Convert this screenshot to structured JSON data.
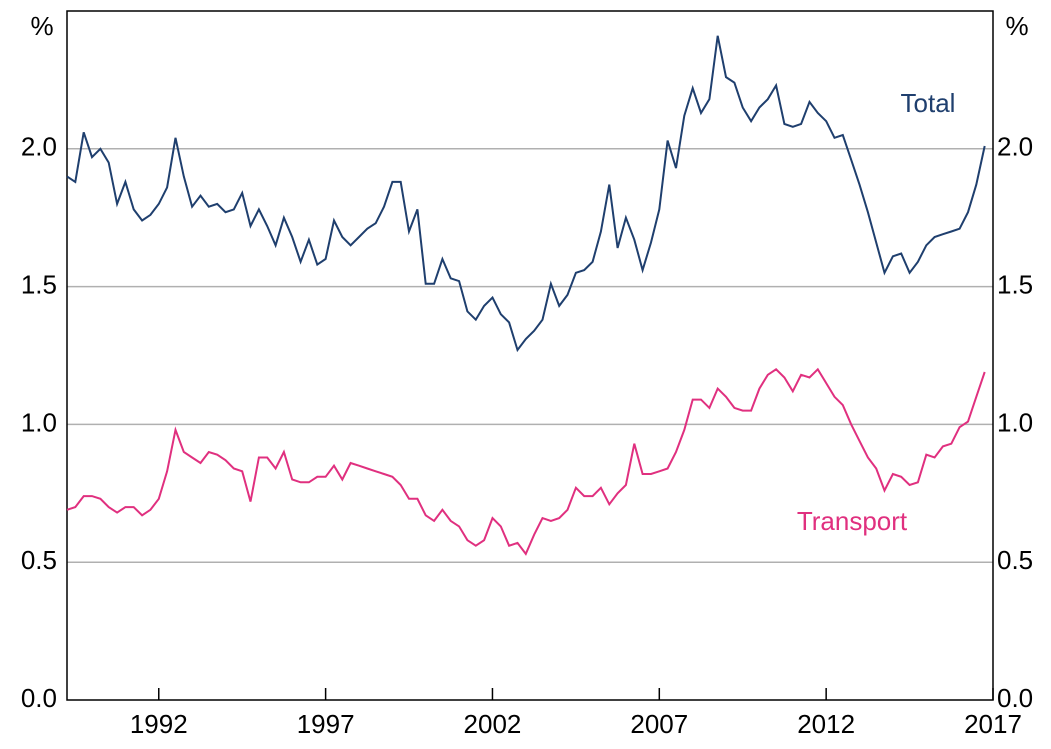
{
  "chart_data": {
    "type": "line",
    "ylabel": "%",
    "y2label": "%",
    "x": [
      1989.25,
      1989.5,
      1989.75,
      1990,
      1990.25,
      1990.5,
      1990.75,
      1991,
      1991.25,
      1991.5,
      1991.75,
      1992,
      1992.25,
      1992.5,
      1992.75,
      1993,
      1993.25,
      1993.5,
      1993.75,
      1994,
      1994.25,
      1994.5,
      1994.75,
      1995,
      1995.25,
      1995.5,
      1995.75,
      1996,
      1996.25,
      1996.5,
      1996.75,
      1997,
      1997.25,
      1997.5,
      1997.75,
      1998,
      1998.25,
      1998.5,
      1998.75,
      1999,
      1999.25,
      1999.5,
      1999.75,
      2000,
      2000.25,
      2000.5,
      2000.75,
      2001,
      2001.25,
      2001.5,
      2001.75,
      2002,
      2002.25,
      2002.5,
      2002.75,
      2003,
      2003.25,
      2003.5,
      2003.75,
      2004,
      2004.25,
      2004.5,
      2004.75,
      2005,
      2005.25,
      2005.5,
      2005.75,
      2006,
      2006.25,
      2006.5,
      2006.75,
      2007,
      2007.25,
      2007.5,
      2007.75,
      2008,
      2008.25,
      2008.5,
      2008.75,
      2009,
      2009.25,
      2009.5,
      2009.75,
      2010,
      2010.25,
      2010.5,
      2010.75,
      2011,
      2011.25,
      2011.5,
      2011.75,
      2012,
      2012.25,
      2012.5,
      2012.75,
      2013,
      2013.25,
      2013.5,
      2013.75,
      2014,
      2014.25,
      2014.5,
      2014.75,
      2015,
      2015.25,
      2015.5,
      2015.75,
      2016,
      2016.25,
      2016.5,
      2016.75
    ],
    "series": [
      {
        "name": "Total",
        "color": "#1f3f6e",
        "values": [
          1.9,
          1.88,
          2.06,
          1.97,
          2.0,
          1.95,
          1.8,
          1.88,
          1.78,
          1.74,
          1.76,
          1.8,
          1.86,
          2.04,
          1.9,
          1.79,
          1.83,
          1.79,
          1.8,
          1.77,
          1.78,
          1.84,
          1.72,
          1.78,
          1.72,
          1.65,
          1.75,
          1.68,
          1.59,
          1.67,
          1.58,
          1.6,
          1.74,
          1.68,
          1.65,
          1.68,
          1.71,
          1.73,
          1.79,
          1.88,
          1.88,
          1.7,
          1.78,
          1.51,
          1.51,
          1.6,
          1.53,
          1.52,
          1.41,
          1.38,
          1.43,
          1.46,
          1.4,
          1.37,
          1.27,
          1.31,
          1.34,
          1.38,
          1.51,
          1.43,
          1.47,
          1.55,
          1.56,
          1.59,
          1.7,
          1.87,
          1.64,
          1.75,
          1.67,
          1.56,
          1.66,
          1.78,
          2.03,
          1.93,
          2.12,
          2.22,
          2.13,
          2.18,
          2.41,
          2.26,
          2.24,
          2.15,
          2.1,
          2.15,
          2.18,
          2.23,
          2.09,
          2.08,
          2.09,
          2.17,
          2.13,
          2.1,
          2.04,
          2.05,
          1.96,
          1.87,
          1.77,
          1.66,
          1.55,
          1.61,
          1.62,
          1.55,
          1.59,
          1.65,
          1.68,
          1.69,
          1.7,
          1.71,
          1.77,
          1.87,
          2.01
        ]
      },
      {
        "name": "Transport",
        "color": "#e0307f",
        "values": [
          0.69,
          0.7,
          0.74,
          0.74,
          0.73,
          0.7,
          0.68,
          0.7,
          0.7,
          0.67,
          0.69,
          0.73,
          0.83,
          0.98,
          0.9,
          0.88,
          0.86,
          0.9,
          0.89,
          0.87,
          0.84,
          0.83,
          0.72,
          0.88,
          0.88,
          0.84,
          0.9,
          0.8,
          0.79,
          0.79,
          0.81,
          0.81,
          0.85,
          0.8,
          0.86,
          0.85,
          0.84,
          0.83,
          0.82,
          0.81,
          0.78,
          0.73,
          0.73,
          0.67,
          0.65,
          0.69,
          0.65,
          0.63,
          0.58,
          0.56,
          0.58,
          0.66,
          0.63,
          0.56,
          0.57,
          0.53,
          0.6,
          0.66,
          0.65,
          0.66,
          0.69,
          0.77,
          0.74,
          0.74,
          0.77,
          0.71,
          0.75,
          0.78,
          0.93,
          0.82,
          0.82,
          0.83,
          0.84,
          0.9,
          0.98,
          1.09,
          1.09,
          1.06,
          1.13,
          1.1,
          1.06,
          1.05,
          1.05,
          1.13,
          1.18,
          1.2,
          1.17,
          1.12,
          1.18,
          1.17,
          1.2,
          1.15,
          1.1,
          1.07,
          1.0,
          0.94,
          0.88,
          0.84,
          0.76,
          0.82,
          0.81,
          0.78,
          0.79,
          0.89,
          0.88,
          0.92,
          0.93,
          0.99,
          1.01,
          1.1,
          1.19
        ]
      }
    ],
    "xlim": [
      1989.25,
      2017
    ],
    "xticks": [
      1992,
      1997,
      2002,
      2007,
      2012,
      2017
    ],
    "ylim": [
      0,
      2.5
    ],
    "yticks": [
      {
        "value": 0,
        "label": "0.0"
      },
      0.5,
      {
        "value": 1,
        "label": "1.0"
      },
      1.5,
      {
        "value": 2,
        "label": "2.0"
      }
    ],
    "grid": true
  }
}
